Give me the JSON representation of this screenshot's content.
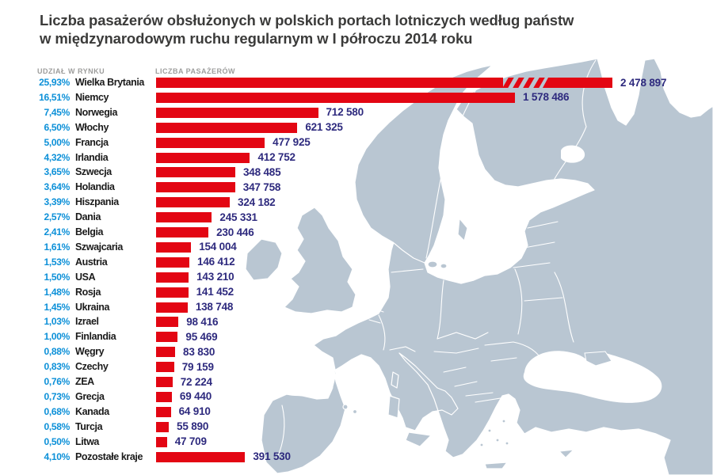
{
  "title": {
    "line1": "Liczba pasażerów obsłużonych w polskich portach lotniczych według państw",
    "line2": "w międzynarodowym ruchu regularnym w I półroczu 2014 roku"
  },
  "column_headers": {
    "market_share": "UDZIAŁ W RYNKU",
    "passengers": "LICZBA PASAŻERÓW"
  },
  "colors": {
    "bar_red": "#e30613",
    "share_blue": "#0c90d8",
    "value_navy": "#2e2a7e",
    "country_black": "#1a1a1a",
    "header_gray": "#9d9d9c",
    "title_gray": "#3b3b3a",
    "map_land": "#b9c6d2",
    "map_border": "#ffffff",
    "background": "#ffffff"
  },
  "chart_data": {
    "type": "bar",
    "orientation": "horizontal",
    "title": "Liczba pasażerów obsłużonych w polskich portach lotniczych według państw w międzynarodowym ruchu regularnym w I półroczu 2014 roku",
    "grid": false,
    "legend": "none",
    "background": "europe-map",
    "value_labels_position": "end-of-bar",
    "categories": [
      "Wielka Brytania",
      "Niemcy",
      "Norwegia",
      "Włochy",
      "Francja",
      "Irlandia",
      "Szwecja",
      "Holandia",
      "Hiszpania",
      "Dania",
      "Belgia",
      "Szwajcaria",
      "Austria",
      "USA",
      "Rosja",
      "Ukraina",
      "Izrael",
      "Finlandia",
      "Węgry",
      "Czechy",
      "ZEA",
      "Grecja",
      "Kanada",
      "Turcja",
      "Litwa",
      "Pozostałe kraje"
    ],
    "series": [
      {
        "name": "Udział w rynku",
        "unit": "%",
        "values": [
          25.93,
          16.51,
          7.45,
          6.5,
          5.0,
          4.32,
          3.65,
          3.64,
          3.39,
          2.57,
          2.41,
          1.61,
          1.53,
          1.5,
          1.48,
          1.45,
          1.03,
          1.0,
          0.88,
          0.83,
          0.76,
          0.73,
          0.68,
          0.58,
          0.5,
          4.1
        ]
      },
      {
        "name": "Liczba pasażerów",
        "unit": "pasażerowie",
        "values": [
          2478897,
          1578486,
          712580,
          621325,
          477925,
          412752,
          348485,
          347758,
          324182,
          245331,
          230446,
          154004,
          146412,
          143210,
          141452,
          138748,
          98416,
          95469,
          83830,
          79159,
          72224,
          69440,
          64910,
          55890,
          47709,
          391530
        ]
      }
    ],
    "share_labels": [
      "25,93%",
      "16,51%",
      "7,45%",
      "6,50%",
      "5,00%",
      "4,32%",
      "3,65%",
      "3,64%",
      "3,39%",
      "2,57%",
      "2,41%",
      "1,61%",
      "1,53%",
      "1,50%",
      "1,48%",
      "1,45%",
      "1,03%",
      "1,00%",
      "0,88%",
      "0,83%",
      "0,76%",
      "0,73%",
      "0,68%",
      "0,58%",
      "0,50%",
      "4,10%"
    ],
    "value_labels": [
      "2 478 897",
      "1 578 486",
      "712 580",
      "621 325",
      "477 925",
      "412 752",
      "348 485",
      "347 758",
      "324 182",
      "245 331",
      "230 446",
      "154 004",
      "146 412",
      "143 210",
      "141 452",
      "138 748",
      "98 416",
      "95 469",
      "83 830",
      "79 159",
      "72 224",
      "69 440",
      "64 910",
      "55 890",
      "47 709",
      "391 530"
    ],
    "bar_color": "#e30613",
    "truncated_bars": [
      "Wielka Brytania"
    ]
  }
}
